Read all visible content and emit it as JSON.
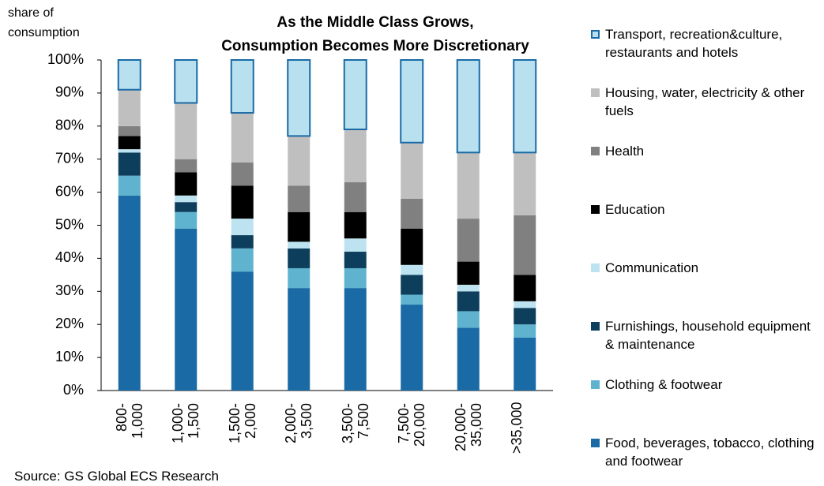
{
  "chart_data": {
    "type": "stacked_bar",
    "title": [
      "As the Middle Class Grows,",
      "Consumption Becomes More Discretionary"
    ],
    "ylabel": "share of consumption",
    "source": "Source: GS Global ECS Research",
    "categories": [
      "800-1,000",
      "1,000-1,500",
      "1,500-2,000",
      "2,000-3,500",
      "3,500-7,500",
      "7,500-20,000",
      "20,000-35,000",
      ">35,000"
    ],
    "series": [
      {
        "name": "Food, beverages, tobacco, clothing and footwear",
        "color": "#1a6aa5",
        "values": [
          59,
          49,
          36,
          31,
          31,
          26,
          19,
          16
        ]
      },
      {
        "name": "Clothing & footwear",
        "color": "#5fb3cf",
        "values": [
          6,
          5,
          7,
          6,
          6,
          3,
          5,
          4
        ]
      },
      {
        "name": "Furnishings, household equipment & maintenance",
        "color": "#0d3f5c",
        "values": [
          7,
          3,
          4,
          6,
          5,
          6,
          6,
          5
        ]
      },
      {
        "name": "Communication",
        "color": "#bde3f0",
        "values": [
          1,
          2,
          5,
          2,
          4,
          3,
          2,
          2
        ]
      },
      {
        "name": "Education",
        "color": "#000000",
        "values": [
          4,
          7,
          10,
          9,
          8,
          11,
          7,
          8
        ]
      },
      {
        "name": "Health",
        "color": "#808080",
        "values": [
          3,
          4,
          7,
          8,
          9,
          9,
          13,
          18
        ]
      },
      {
        "name": "Housing, water, electricity & other fuels",
        "color": "#bfbfbf",
        "values": [
          11,
          17,
          15,
          15,
          16,
          17,
          20,
          19
        ]
      },
      {
        "name": "Transport, recreation&culture, restaurants and hotels",
        "color": "#b8e0ee",
        "border": "#1a6aa5",
        "values": [
          9,
          13,
          16,
          23,
          21,
          25,
          28,
          28
        ]
      }
    ],
    "ylim": [
      0,
      100
    ],
    "yticks": [
      {
        "value": 0,
        "label": "0%"
      },
      {
        "value": 10,
        "label": "10%"
      },
      {
        "value": 20,
        "label": "20%"
      },
      {
        "value": 30,
        "label": "30%"
      },
      {
        "value": 40,
        "label": "40%"
      },
      {
        "value": 50,
        "label": "50%"
      },
      {
        "value": 60,
        "label": "60%"
      },
      {
        "value": 70,
        "label": "70%"
      },
      {
        "value": 80,
        "label": "80%"
      },
      {
        "value": 90,
        "label": "90%"
      },
      {
        "value": 100,
        "label": "100%"
      }
    ]
  }
}
